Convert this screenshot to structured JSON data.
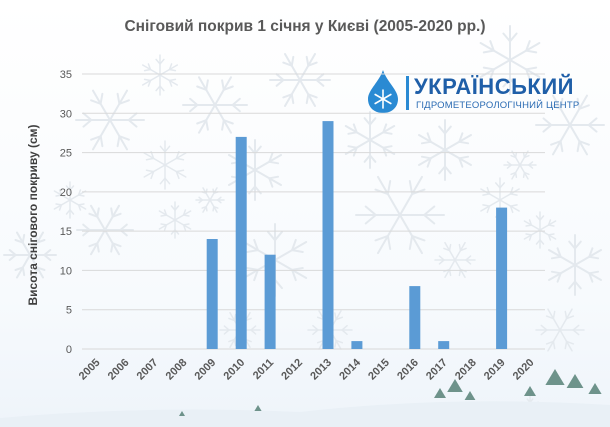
{
  "logo": {
    "name": "УКРАЇНСЬКИЙ",
    "subtitle": "ГІДРОМЕТЕОРОЛОГІЧНИЙ ЦЕНТР"
  },
  "colors": {
    "bar": "#5b9bd5",
    "grid": "#d9d9d9",
    "text": "#595959",
    "brand": "#1f5fa8"
  },
  "chart_data": {
    "type": "bar",
    "title": "Сніговий покрив 1 січня у Києві (2005-2020 рр.)",
    "xlabel": "",
    "ylabel": "Висота снігового покриву (см)",
    "categories": [
      "2005",
      "2006",
      "2007",
      "2008",
      "2009",
      "2010",
      "2011",
      "2012",
      "2013",
      "2014",
      "2015",
      "2016",
      "2017",
      "2018",
      "2019",
      "2020"
    ],
    "values": [
      0,
      0,
      0,
      0,
      14,
      27,
      12,
      0,
      29,
      1,
      0,
      8,
      1,
      0,
      18,
      0
    ],
    "ylim": [
      0,
      35
    ],
    "yticks": [
      "0",
      "5",
      "10",
      "15",
      "20",
      "25",
      "30",
      "35"
    ],
    "grid": true
  }
}
